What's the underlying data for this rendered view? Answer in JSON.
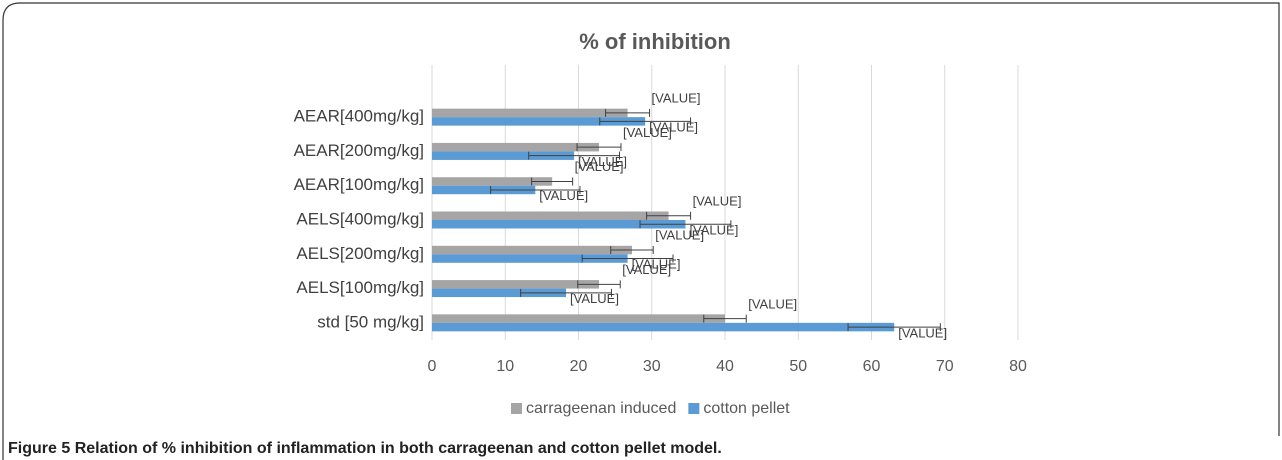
{
  "chart_data": {
    "type": "barh",
    "title": "% of inhibition",
    "categories": [
      "AEAR[400mg/kg]",
      "AEAR[200mg/kg]",
      "AEAR[100mg/kg]",
      "AELS[400mg/kg]",
      "AELS[200mg/kg]",
      "AELS[100mg/kg]",
      "std [50 mg/kg]"
    ],
    "series": [
      {
        "name": "carrageenan induced",
        "color": "#a5a5a5",
        "values": [
          26.7,
          22.8,
          16.4,
          32.3,
          27.3,
          22.8,
          40.0
        ],
        "errors": [
          3.0,
          3.0,
          2.8,
          3.0,
          2.9,
          2.9,
          2.9
        ],
        "value_labels": [
          "[VALUE]",
          "[VALUE]",
          "[VALUE]",
          "[VALUE]",
          "[VALUE]",
          "[VALUE]",
          "[VALUE]"
        ]
      },
      {
        "name": "cotton pellet",
        "color": "#5b9bd5",
        "values": [
          29.1,
          19.4,
          14.1,
          34.6,
          26.7,
          18.3,
          63.1
        ],
        "errors": [
          6.2,
          6.2,
          6.1,
          6.2,
          6.2,
          6.2,
          6.3
        ],
        "value_labels": [
          "[VALUE]",
          "[VALUE]",
          "[VALUE]",
          "[VALUE]",
          "[VALUE]",
          "[VALUE]",
          "[VALUE]"
        ]
      }
    ],
    "xlim": [
      0,
      80
    ],
    "xticks": [
      0,
      10,
      20,
      30,
      40,
      50,
      60,
      70,
      80
    ],
    "grid": true,
    "legend": "bottom"
  },
  "caption": {
    "label": "Figure 5",
    "text": "Relation of % inhibition of inflammation in both carrageenan and cotton pellet model."
  }
}
